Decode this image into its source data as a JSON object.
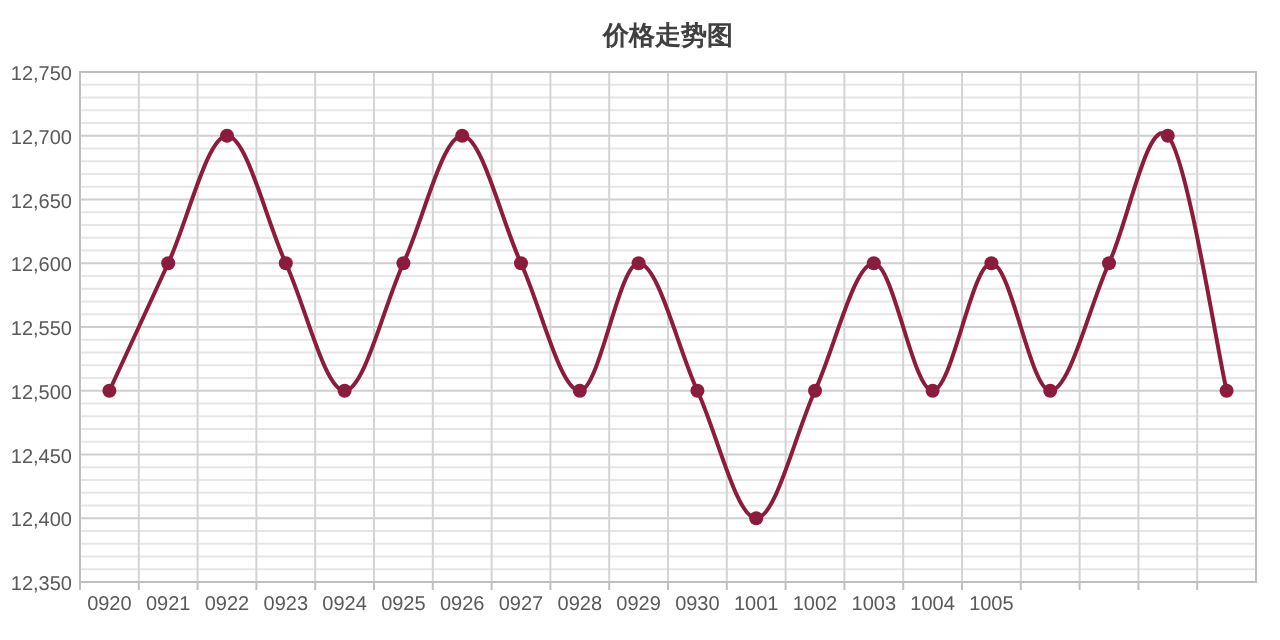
{
  "chart_data": {
    "type": "line",
    "title": "价格走势图",
    "categories": [
      "0920",
      "0921",
      "0922",
      "0923",
      "0924",
      "0925",
      "0926",
      "0927",
      "0928",
      "0929",
      "0930",
      "1001",
      "1002",
      "1003",
      "1004",
      "1005",
      null,
      null,
      null,
      null
    ],
    "series": [
      {
        "color": "#8c1c3c",
        "values": [
          12500,
          12600,
          12700,
          12600,
          12500,
          12600,
          12700,
          12600,
          12500,
          12600,
          12500,
          12400,
          12500,
          12600,
          12500,
          12600,
          12500,
          12600,
          12700,
          12500
        ]
      }
    ],
    "ylim": [
      12350,
      12750
    ],
    "yticks": [
      {
        "value": 12350,
        "label": "12,350"
      },
      {
        "value": 12400,
        "label": "12,400"
      },
      {
        "value": 12450,
        "label": "12,450"
      },
      {
        "value": 12500,
        "label": "12,500"
      },
      {
        "value": 12550,
        "label": "12,550"
      },
      {
        "value": 12600,
        "label": "12,600"
      },
      {
        "value": 12650,
        "label": "12,650"
      },
      {
        "value": 12700,
        "label": "12,700"
      },
      {
        "value": 12750,
        "label": "12,750"
      }
    ],
    "grid": true,
    "marker": "circle"
  }
}
